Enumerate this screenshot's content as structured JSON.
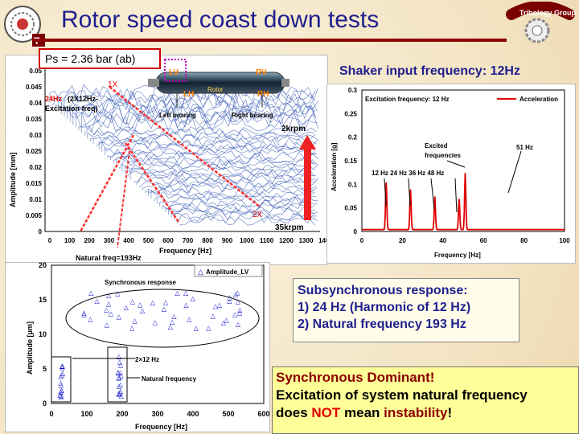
{
  "header": {
    "title": "Rotor speed coast down tests"
  },
  "ps_label": "Ps = 2.36 bar (ab)",
  "shaker_label": "Shaker input frequency: 12Hz",
  "waterfall": {
    "ylabel": "Amplitude [mm]",
    "xlabel": "Frequency [Hz]",
    "yticks": [
      "0.05",
      "0.045",
      "0.04",
      "0.035",
      "0.03",
      "0.025",
      "0.02",
      "0.015",
      "0.01",
      "0.005",
      "0"
    ],
    "xticks": [
      "0",
      "100",
      "200",
      "300",
      "400",
      "500",
      "600",
      "700",
      "800",
      "900",
      "1000",
      "1100",
      "1200",
      "1300",
      "1400"
    ],
    "label_1x": "1X",
    "label_2x": "2X",
    "label_24hz_a": "24Hz",
    "label_24hz_b": "(2X12Hz-",
    "label_24hz_c": "Excitation freq)",
    "label_natural": "Natural freq=193Hz",
    "label_2krpm": "2krpm",
    "label_35krpm": "35krpm",
    "rotor": {
      "lv": "LV",
      "rv": "RV",
      "lh": "LH",
      "rh": "RH",
      "rotor": "Rotor",
      "left_bearing": "Left bearing",
      "right_bearing": "Right bearing"
    }
  },
  "accel_chart": {
    "title": "Excitation frequency: 12 Hz",
    "legend": "Acceleration",
    "ylabel": "Acceleration [g]",
    "xlabel": "Frequency [Hz]",
    "yticks": [
      "0.3",
      "0.25",
      "0.2",
      "0.15",
      "0.1",
      "0.05",
      "0"
    ],
    "xticks": [
      "0",
      "20",
      "40",
      "60",
      "80",
      "100"
    ],
    "ann_excited_a": "Excited",
    "ann_excited_b": "frequencies",
    "ann_51": "51 Hz",
    "ann_freqs": "12 Hz  24 Hz  36 Hz  48 Hz"
  },
  "chart_data": [
    {
      "type": "line",
      "title": "Excitation frequency: 12 Hz",
      "xlabel": "Frequency [Hz]",
      "ylabel": "Acceleration [g]",
      "xlim": [
        0,
        100
      ],
      "ylim": [
        0,
        0.3
      ],
      "series": [
        {
          "name": "Acceleration",
          "x": [
            12,
            24,
            36,
            48,
            51
          ],
          "values": [
            0.1,
            0.085,
            0.07,
            0.065,
            0.12
          ]
        }
      ]
    },
    {
      "type": "scatter",
      "title": "Synchronous response",
      "xlabel": "Frequency [Hz]",
      "ylabel": "Amplitude [μm]",
      "xlim": [
        0,
        600
      ],
      "ylim": [
        0,
        20
      ],
      "series": [
        {
          "name": "Amplitude_LV"
        }
      ]
    }
  ],
  "sync_chart": {
    "legend": "Amplitude_LV",
    "title": "Synchronous response",
    "ylabel": "Amplitude [μm]",
    "xlabel": "Frequency [Hz]",
    "yticks": [
      "20",
      "15",
      "10",
      "5",
      "0"
    ],
    "xticks": [
      "0",
      "100",
      "200",
      "300",
      "400",
      "500",
      "600"
    ],
    "ann_2x12": "2×12 Hz",
    "ann_natural": "Natural frequency"
  },
  "subsync": {
    "line1": "Subsynchronous response:",
    "line2": "1)  24 Hz (Harmonic of 12 Hz)",
    "line3": "2)  Natural frequency 193 Hz"
  },
  "dominant": {
    "line1": "Synchronous Dominant!",
    "line2": "Excitation of system natural frequency",
    "line3a": "does ",
    "line3b": "NOT",
    "line3c": " mean ",
    "line3d": "instability",
    "line3e": "!"
  }
}
